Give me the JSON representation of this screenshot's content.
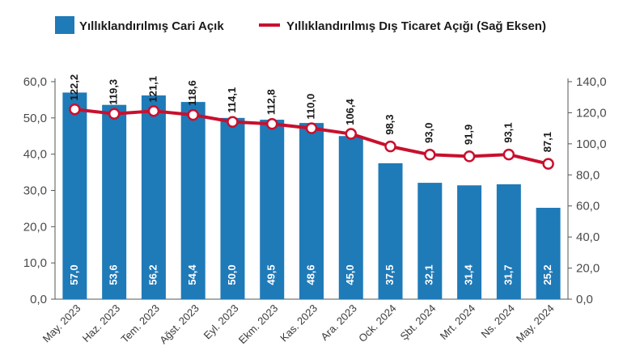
{
  "colors": {
    "bar": "#1f7ab8",
    "line": "#c8102e",
    "marker_fill": "#ffffff",
    "axis": "#555555"
  },
  "chart_data": {
    "type": "bar",
    "categories": [
      "May. 2023",
      "Haz. 2023",
      "Tem. 2023",
      "Ağst. 2023",
      "Eyl. 2023",
      "Ekm. 2023",
      "Kas. 2023",
      "Ara. 2023",
      "Ock. 2024",
      "Şbt. 2024",
      "Mrt. 2024",
      "Ns. 2024",
      "May. 2024"
    ],
    "series": [
      {
        "name": "Yıllıklandırılmış Cari Açık",
        "kind": "bar",
        "axis": "left",
        "values": [
          57.0,
          53.6,
          56.2,
          54.4,
          50.0,
          49.5,
          48.6,
          45.0,
          37.5,
          32.1,
          31.4,
          31.7,
          25.2
        ],
        "labels": [
          "57,0",
          "53,6",
          "56,2",
          "54,4",
          "50,0",
          "49,5",
          "48,6",
          "45,0",
          "37,5",
          "32,1",
          "31,4",
          "31,7",
          "25,2"
        ]
      },
      {
        "name": "Yıllıklandırılmış Dış Ticaret Açığı (Sağ Eksen)",
        "kind": "line",
        "axis": "right",
        "values": [
          122.2,
          119.3,
          121.1,
          118.6,
          114.1,
          112.8,
          110.0,
          106.4,
          98.3,
          93.0,
          91.9,
          93.1,
          87.1
        ],
        "labels": [
          "122,2",
          "119,3",
          "121,1",
          "118,6",
          "114,1",
          "112,8",
          "110,0",
          "106,4",
          "98,3",
          "93,0",
          "91,9",
          "93,1",
          "87,1"
        ]
      }
    ],
    "left_axis": {
      "ylim": [
        0,
        60
      ],
      "ticks": [
        0,
        10,
        20,
        30,
        40,
        50,
        60
      ],
      "tick_labels": [
        "0,0",
        "10,0",
        "20,0",
        "30,0",
        "40,0",
        "50,0",
        "60,0"
      ]
    },
    "right_axis": {
      "ylim": [
        0,
        140
      ],
      "ticks": [
        0,
        20,
        40,
        60,
        80,
        100,
        120,
        140
      ],
      "tick_labels": [
        "0,0",
        "20,0",
        "40,0",
        "60,0",
        "80,0",
        "100,0",
        "120,0",
        "140,0"
      ]
    },
    "legend_position": "top"
  }
}
